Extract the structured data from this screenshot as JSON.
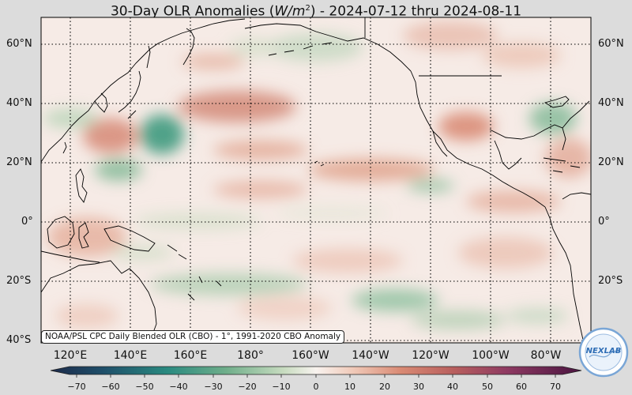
{
  "header": {
    "title_prefix": "30-Day OLR Anomalies (",
    "title_unit": "W/m",
    "title_exp": "2",
    "title_suffix": ") - 2024-07-12 thru 2024-08-11"
  },
  "map": {
    "lat_labels": [
      "60°N",
      "40°N",
      "20°N",
      "0°",
      "20°S",
      "40°S"
    ],
    "lon_labels": [
      "120°E",
      "140°E",
      "160°E",
      "180°",
      "160°W",
      "140°W",
      "120°W",
      "100°W",
      "80°W"
    ],
    "grid": true,
    "colors": {
      "positive": "#d98a74",
      "negative": "#6fae8a",
      "neutral": "#f7ece8",
      "coastline": "#000000"
    }
  },
  "colorbar": {
    "ticks": [
      "−70",
      "−60",
      "−50",
      "−40",
      "−30",
      "−20",
      "−10",
      "0",
      "10",
      "20",
      "30",
      "40",
      "50",
      "60",
      "70"
    ],
    "range": [
      -70,
      70
    ]
  },
  "credit": "NOAA/PSL CPC Daily Blended OLR (CBO) - 1°, 1991-2020 CBO Anomaly",
  "logo": {
    "text": "NEXLAB",
    "ring_text": "COLUMBIA WATER CENTER"
  }
}
